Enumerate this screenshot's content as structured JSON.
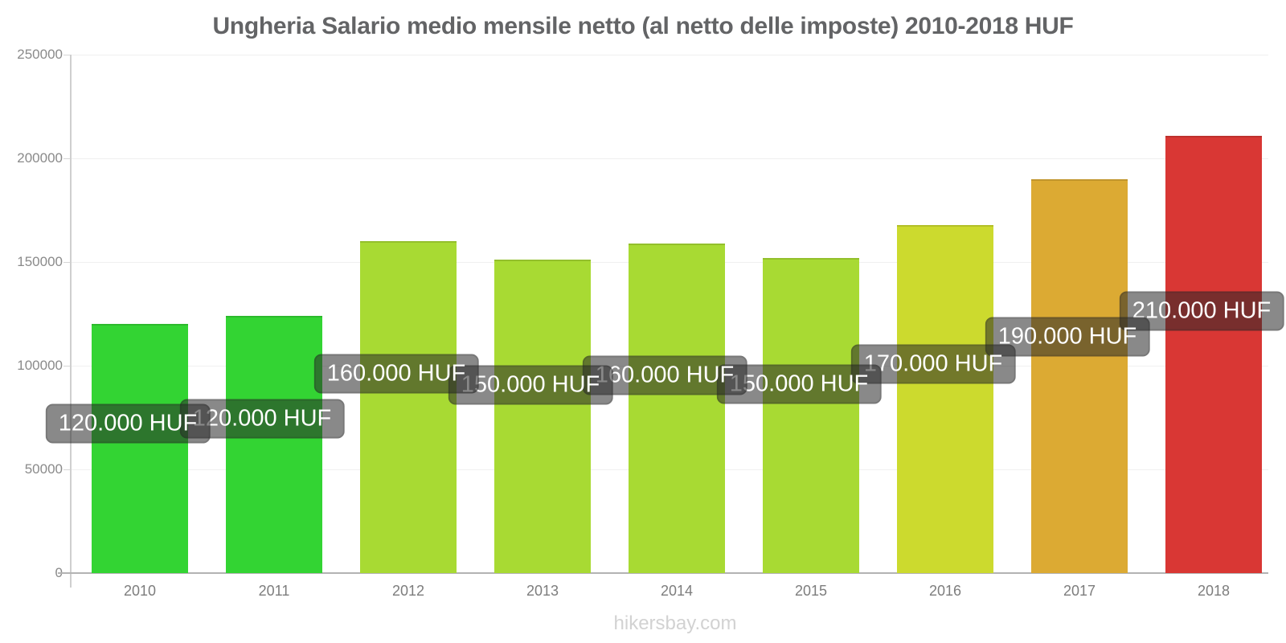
{
  "title": "Ungheria Salario medio mensile netto (al netto delle imposte) 2010-2018 HUF",
  "watermark": "hikersbay.com",
  "chart_data": {
    "type": "bar",
    "title": "Ungheria Salario medio mensile netto (al netto delle imposte) 2010-2018 HUF",
    "categories": [
      "2010",
      "2011",
      "2012",
      "2013",
      "2014",
      "2015",
      "2016",
      "2017",
      "2018"
    ],
    "values": [
      120000,
      124000,
      160000,
      151000,
      159000,
      152000,
      168000,
      190000,
      211000
    ],
    "bar_labels": [
      "120.000 HUF",
      "120.000 HUF",
      "160.000 HUF",
      "150.000 HUF",
      "160.000 HUF",
      "150.000 HUF",
      "170.000 HUF",
      "190.000 HUF",
      "210.000 HUF"
    ],
    "bar_colors": [
      "#33d433",
      "#33d433",
      "#a8da33",
      "#a8da33",
      "#a8da33",
      "#a8da33",
      "#ccda2e",
      "#dcaa33",
      "#d93734"
    ],
    "xlabel": "",
    "ylabel": "",
    "ylim": [
      0,
      250000
    ],
    "yticks": [
      0,
      50000,
      100000,
      150000,
      200000,
      250000
    ],
    "grid": true,
    "legend": false,
    "tooltip_bg": "rgba(40,40,40,0.55)",
    "tooltip_text_color": "#ffffff",
    "currency": "HUF"
  }
}
